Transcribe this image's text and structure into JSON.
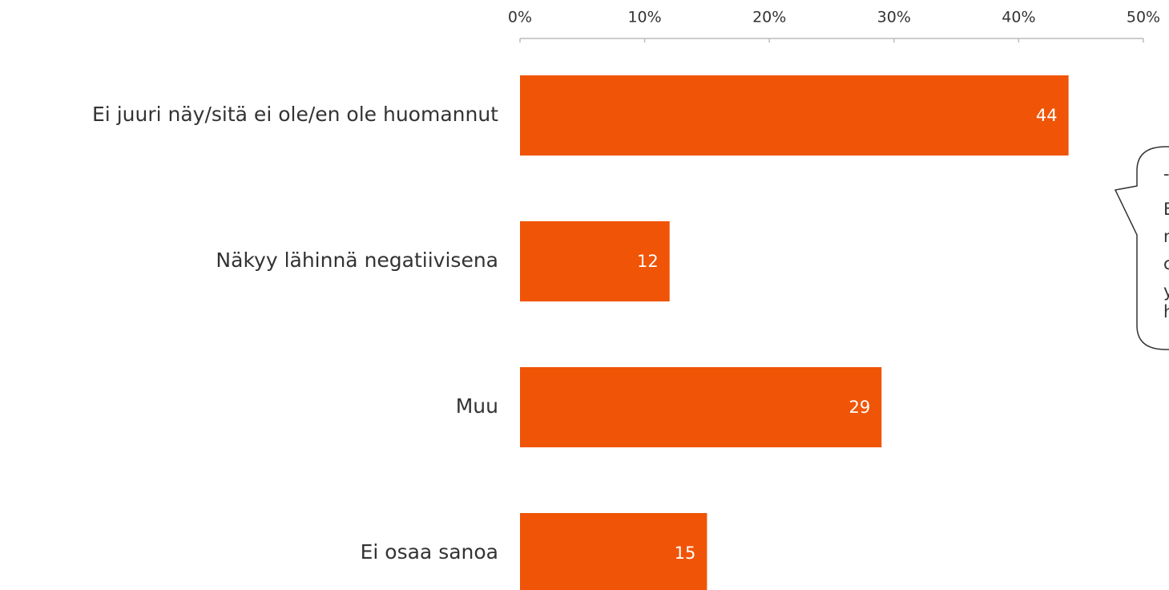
{
  "chart_data": {
    "type": "bar",
    "orientation": "horizontal",
    "categories": [
      "Ei juuri näy/sitä ei ole/en ole huomannut",
      "Näkyy lähinnä negatiivisena",
      "Muu",
      "Ei osaa sanoa"
    ],
    "values": [
      44,
      12,
      29,
      15
    ],
    "color": "#f05406",
    "xlim": [
      0,
      50
    ],
    "xticks": [
      {
        "value": 0,
        "label": "0%"
      },
      {
        "value": 10,
        "label": "10%"
      },
      {
        "value": 20,
        "label": "20%"
      },
      {
        "value": 30,
        "label": "30%"
      },
      {
        "value": 40,
        "label": "40%"
      },
      {
        "value": 50,
        "label": "50%"
      }
    ],
    "annotation": [
      "-",
      "E",
      "n",
      "c",
      "y",
      "h"
    ]
  }
}
